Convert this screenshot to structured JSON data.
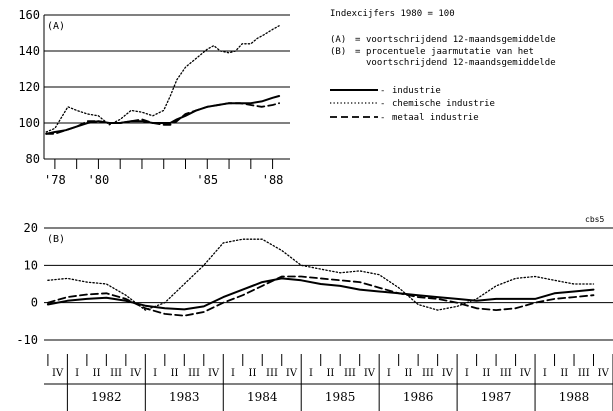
{
  "title": "Indexcijfers 1980 = 100",
  "notes": [
    {
      "key": "(A)",
      "sep": "=",
      "text": [
        "voortschrijdend 12-maandsgemiddelde"
      ]
    },
    {
      "key": "(B)",
      "sep": "=",
      "text": [
        "procentuele jaarmutatie van het",
        "voortschrijdend 12-maandsgemiddelde"
      ]
    }
  ],
  "source": "cbs5",
  "legend": [
    {
      "label": "industrie",
      "style": "solid",
      "color": "#000000"
    },
    {
      "label": "chemische industrie",
      "style": "dotted",
      "color": "#000000"
    },
    {
      "label": "metaal industrie",
      "style": "dashed",
      "color": "#000000"
    }
  ],
  "chart_data": [
    {
      "type": "line",
      "panel_label": "(A)",
      "ylim": [
        80,
        160
      ],
      "yticks": [
        80,
        100,
        120,
        140,
        160
      ],
      "xlim": [
        1977.5,
        1988.8
      ],
      "xtick_labels": [
        {
          "label": "'78",
          "x": 1978
        },
        {
          "label": "'80",
          "x": 1980
        },
        {
          "label": "'85",
          "x": 1985
        },
        {
          "label": "'88",
          "x": 1988
        }
      ],
      "grid": "horizontal",
      "series": [
        {
          "name": "industrie",
          "style": "solid",
          "x": [
            1977.6,
            1978.0,
            1978.5,
            1979.0,
            1979.5,
            1980.0,
            1980.5,
            1981.0,
            1981.5,
            1982.0,
            1982.5,
            1983.0,
            1983.3,
            1983.6,
            1984.0,
            1984.5,
            1985.0,
            1985.5,
            1986.0,
            1986.5,
            1987.0,
            1987.5,
            1988.0,
            1988.3
          ],
          "y": [
            94,
            95,
            96,
            98,
            100,
            101,
            100,
            100,
            101,
            101,
            100,
            100,
            100,
            102,
            104,
            107,
            109,
            110,
            111,
            111,
            111,
            112,
            114,
            115
          ]
        },
        {
          "name": "chemische industrie",
          "style": "dotted",
          "x": [
            1977.6,
            1978.0,
            1978.3,
            1978.6,
            1979.0,
            1979.5,
            1980.0,
            1980.5,
            1981.0,
            1981.5,
            1982.0,
            1982.5,
            1983.0,
            1983.3,
            1983.6,
            1984.0,
            1984.5,
            1985.0,
            1985.3,
            1985.6,
            1986.0,
            1986.3,
            1986.6,
            1987.0,
            1987.3,
            1987.6,
            1988.0,
            1988.3
          ],
          "y": [
            95,
            97,
            103,
            109,
            107,
            105,
            104,
            99,
            102,
            107,
            106,
            104,
            107,
            115,
            124,
            131,
            136,
            141,
            143,
            140,
            139,
            140,
            144,
            144,
            147,
            149,
            152,
            154
          ]
        },
        {
          "name": "metaal industrie",
          "style": "dashed",
          "x": [
            1977.6,
            1978.0,
            1978.5,
            1979.0,
            1979.5,
            1980.0,
            1980.5,
            1981.0,
            1981.5,
            1982.0,
            1982.5,
            1983.0,
            1983.3,
            1983.6,
            1984.0,
            1984.5,
            1985.0,
            1985.5,
            1986.0,
            1986.5,
            1987.0,
            1987.5,
            1988.0,
            1988.3
          ],
          "y": [
            94,
            94,
            96,
            98,
            101,
            101,
            100,
            100,
            101,
            102,
            100,
            99,
            99,
            101,
            105,
            107,
            109,
            110,
            111,
            111,
            110,
            109,
            110,
            111
          ]
        }
      ]
    },
    {
      "type": "line",
      "panel_label": "(B)",
      "ylim": [
        -10,
        20
      ],
      "yticks": [
        -10,
        0,
        10,
        20
      ],
      "xlim": [
        1981.7,
        1989.0
      ],
      "quarter_labels": [
        "I",
        "II",
        "III",
        "IV"
      ],
      "first_quarter_label": "IV",
      "years": [
        "1982",
        "1983",
        "1984",
        "1985",
        "1986",
        "1987",
        "1988"
      ],
      "grid": "horizontal",
      "series": [
        {
          "name": "industrie",
          "style": "solid",
          "x": [
            1981.75,
            1982.0,
            1982.25,
            1982.5,
            1982.75,
            1983.0,
            1983.25,
            1983.5,
            1983.75,
            1984.0,
            1984.25,
            1984.5,
            1984.75,
            1985.0,
            1985.25,
            1985.5,
            1985.75,
            1986.0,
            1986.25,
            1986.5,
            1986.75,
            1987.0,
            1987.25,
            1987.5,
            1987.75,
            1988.0,
            1988.25,
            1988.5,
            1988.75
          ],
          "y": [
            -0.5,
            0.5,
            1.0,
            1.3,
            0.5,
            -0.8,
            -1.5,
            -1.8,
            -1.0,
            1.5,
            3.5,
            5.5,
            6.5,
            6.0,
            5.0,
            4.5,
            3.5,
            3.0,
            2.5,
            2.0,
            1.5,
            1.0,
            0.5,
            1.0,
            1.0,
            1.0,
            2.5,
            3.0,
            3.5
          ]
        },
        {
          "name": "chemische industrie",
          "style": "dotted",
          "x": [
            1981.75,
            1982.0,
            1982.25,
            1982.5,
            1982.75,
            1983.0,
            1983.25,
            1983.5,
            1983.75,
            1984.0,
            1984.25,
            1984.5,
            1984.75,
            1985.0,
            1985.25,
            1985.5,
            1985.75,
            1986.0,
            1986.25,
            1986.5,
            1986.75,
            1987.0,
            1987.25,
            1987.5,
            1987.75,
            1988.0,
            1988.25,
            1988.5,
            1988.75
          ],
          "y": [
            6.0,
            6.5,
            5.5,
            5.0,
            2.0,
            -2.0,
            0.0,
            5.0,
            10.0,
            16.0,
            17.0,
            17.0,
            14.0,
            10.0,
            9.0,
            8.0,
            8.5,
            7.5,
            4.0,
            -0.5,
            -2.0,
            -1.0,
            1.0,
            4.5,
            6.5,
            7.0,
            6.0,
            5.0,
            5.0
          ]
        },
        {
          "name": "metaal industrie",
          "style": "dashed",
          "x": [
            1981.75,
            1982.0,
            1982.25,
            1982.5,
            1982.75,
            1983.0,
            1983.25,
            1983.5,
            1983.75,
            1984.0,
            1984.25,
            1984.5,
            1984.75,
            1985.0,
            1985.25,
            1985.5,
            1985.75,
            1986.0,
            1986.25,
            1986.5,
            1986.75,
            1987.0,
            1987.25,
            1987.5,
            1987.75,
            1988.0,
            1988.25,
            1988.5,
            1988.75
          ],
          "y": [
            0.0,
            1.5,
            2.2,
            2.5,
            1.0,
            -1.5,
            -3.0,
            -3.5,
            -2.5,
            0.0,
            2.0,
            4.5,
            7.0,
            7.0,
            6.5,
            6.0,
            5.5,
            4.0,
            2.5,
            1.5,
            1.0,
            0.0,
            -1.5,
            -2.0,
            -1.5,
            0.0,
            1.0,
            1.5,
            2.0
          ]
        }
      ]
    }
  ]
}
